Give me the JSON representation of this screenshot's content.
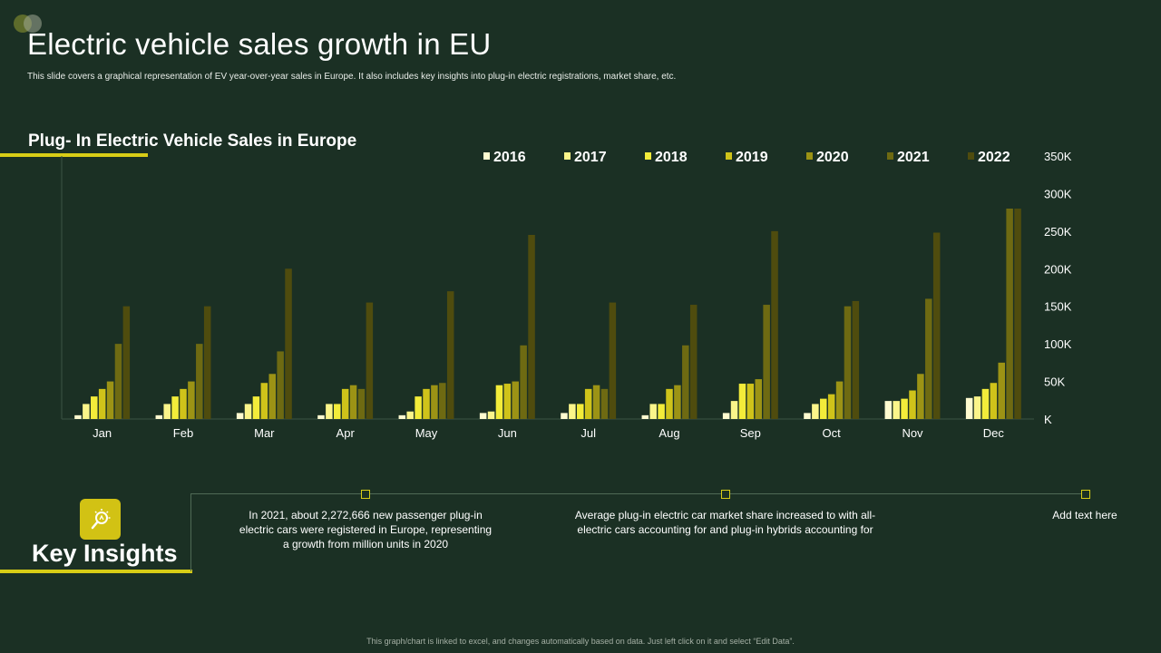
{
  "header": {
    "title": "Electric vehicle sales growth in EU",
    "subtitle": "This slide covers a graphical representation of  EV year-over-year sales in Europe. It also includes key insights into plug-in electric registrations, market share, etc."
  },
  "chart_title": "Plug- In Electric Vehicle Sales in Europe",
  "colors": {
    "background": "#1b3024",
    "accent": "#d8cd16",
    "series": [
      "#fffbd0",
      "#fbf58a",
      "#f3ec3a",
      "#cfc31a",
      "#9c9315",
      "#6e6a12",
      "#4f4c0e"
    ]
  },
  "chart_data": {
    "type": "bar",
    "title": "Plug- In Electric Vehicle Sales in Europe",
    "xlabel": "",
    "ylabel": "",
    "ylim": [
      0,
      350
    ],
    "yticks": [
      0,
      50,
      100,
      150,
      200,
      250,
      300,
      350
    ],
    "ytick_labels": [
      "K",
      "50K",
      "100K",
      "150K",
      "200K",
      "250K",
      "300K",
      "350K"
    ],
    "legend_position": "top",
    "categories": [
      "Jan",
      "Feb",
      "Mar",
      "Apr",
      "May",
      "Jun",
      "Jul",
      "Aug",
      "Sep",
      "Oct",
      "Nov",
      "Dec"
    ],
    "series": [
      {
        "name": "2016",
        "values": [
          5,
          5,
          8,
          5,
          5,
          8,
          8,
          5,
          8,
          8,
          24,
          28
        ]
      },
      {
        "name": "2017",
        "values": [
          20,
          20,
          20,
          20,
          10,
          10,
          20,
          20,
          24,
          20,
          24,
          30
        ]
      },
      {
        "name": "2018",
        "values": [
          30,
          30,
          30,
          20,
          30,
          45,
          20,
          20,
          47,
          27,
          27,
          40
        ]
      },
      {
        "name": "2019",
        "values": [
          40,
          40,
          48,
          40,
          40,
          47,
          40,
          40,
          47,
          33,
          38,
          48
        ]
      },
      {
        "name": "2020",
        "values": [
          50,
          50,
          60,
          45,
          45,
          50,
          45,
          45,
          53,
          50,
          60,
          75
        ]
      },
      {
        "name": "2021",
        "values": [
          100,
          100,
          90,
          40,
          48,
          98,
          40,
          98,
          152,
          150,
          160,
          280
        ]
      },
      {
        "name": "2022",
        "values": [
          150,
          150,
          200,
          155,
          170,
          245,
          155,
          152,
          250,
          157,
          248,
          280
        ]
      }
    ]
  },
  "insights": {
    "title": "Key Insights",
    "items": [
      "In 2021, about 2,272,666 new passenger plug-in electric cars were registered in Europe, representing a          growth from          million units in 2020",
      "Average  plug-in electric car market share increased to          with all-electric cars accounting for          and plug-in hybrids accounting for",
      "Add text here"
    ]
  },
  "footer": "This graph/chart is linked to excel, and changes automatically based on data. Just left click on it and select “Edit Data”."
}
